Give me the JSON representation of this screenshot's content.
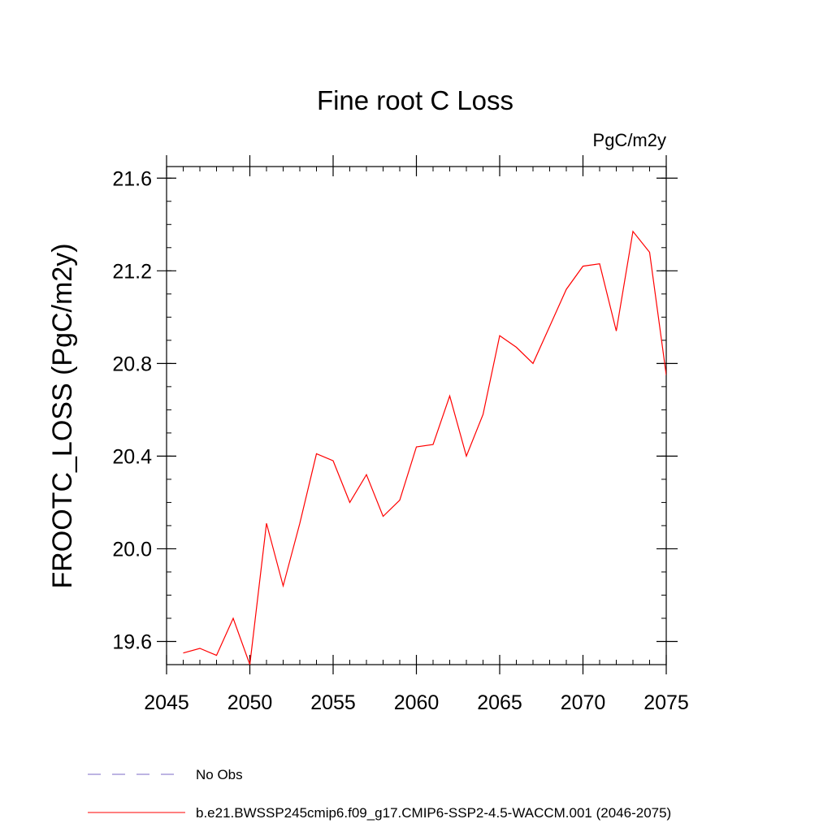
{
  "chart_data": {
    "type": "line",
    "title": "Fine root C Loss",
    "units": "PgC/m2y",
    "ylabel": "FROOTC_LOSS  (PgC/m2y)",
    "xlabel": "",
    "xlim": [
      2045,
      2075
    ],
    "ylim": [
      19.5,
      21.65
    ],
    "x_ticks": [
      2045,
      2050,
      2055,
      2060,
      2065,
      2070,
      2075
    ],
    "y_ticks": [
      19.6,
      20.0,
      20.4,
      20.8,
      21.2,
      21.6
    ],
    "y_tick_labels": [
      "19.6",
      "20.0",
      "20.4",
      "20.8",
      "21.2",
      "21.6"
    ],
    "x_minor_step": 1,
    "y_minor_step": 0.1,
    "grid": false,
    "legend_position": "bottom",
    "series": [
      {
        "name": "b.e21.BWSSP245cmip6.f09_g17.CMIP6-SSP2-4.5-WACCM.001 (2046-2075)",
        "color": "#ff0000",
        "dash": "solid",
        "x": [
          2046,
          2047,
          2048,
          2049,
          2050,
          2051,
          2052,
          2053,
          2054,
          2055,
          2056,
          2057,
          2058,
          2059,
          2060,
          2061,
          2062,
          2063,
          2064,
          2065,
          2066,
          2067,
          2068,
          2069,
          2070,
          2071,
          2072,
          2073,
          2074,
          2075
        ],
        "y": [
          19.55,
          19.57,
          19.54,
          19.7,
          19.5,
          20.11,
          19.84,
          20.11,
          20.41,
          20.38,
          20.2,
          20.32,
          20.14,
          20.21,
          20.44,
          20.45,
          20.66,
          20.4,
          20.58,
          20.92,
          20.87,
          20.8,
          20.96,
          21.12,
          21.22,
          21.23,
          20.94,
          21.37,
          21.28,
          20.75
        ]
      }
    ],
    "legend": [
      {
        "label": "No Obs",
        "color": "#7b68c6",
        "dash": "dashed"
      },
      {
        "label": "b.e21.BWSSP245cmip6.f09_g17.CMIP6-SSP2-4.5-WACCM.001 (2046-2075)",
        "color": "#ff0000",
        "dash": "solid"
      }
    ]
  }
}
